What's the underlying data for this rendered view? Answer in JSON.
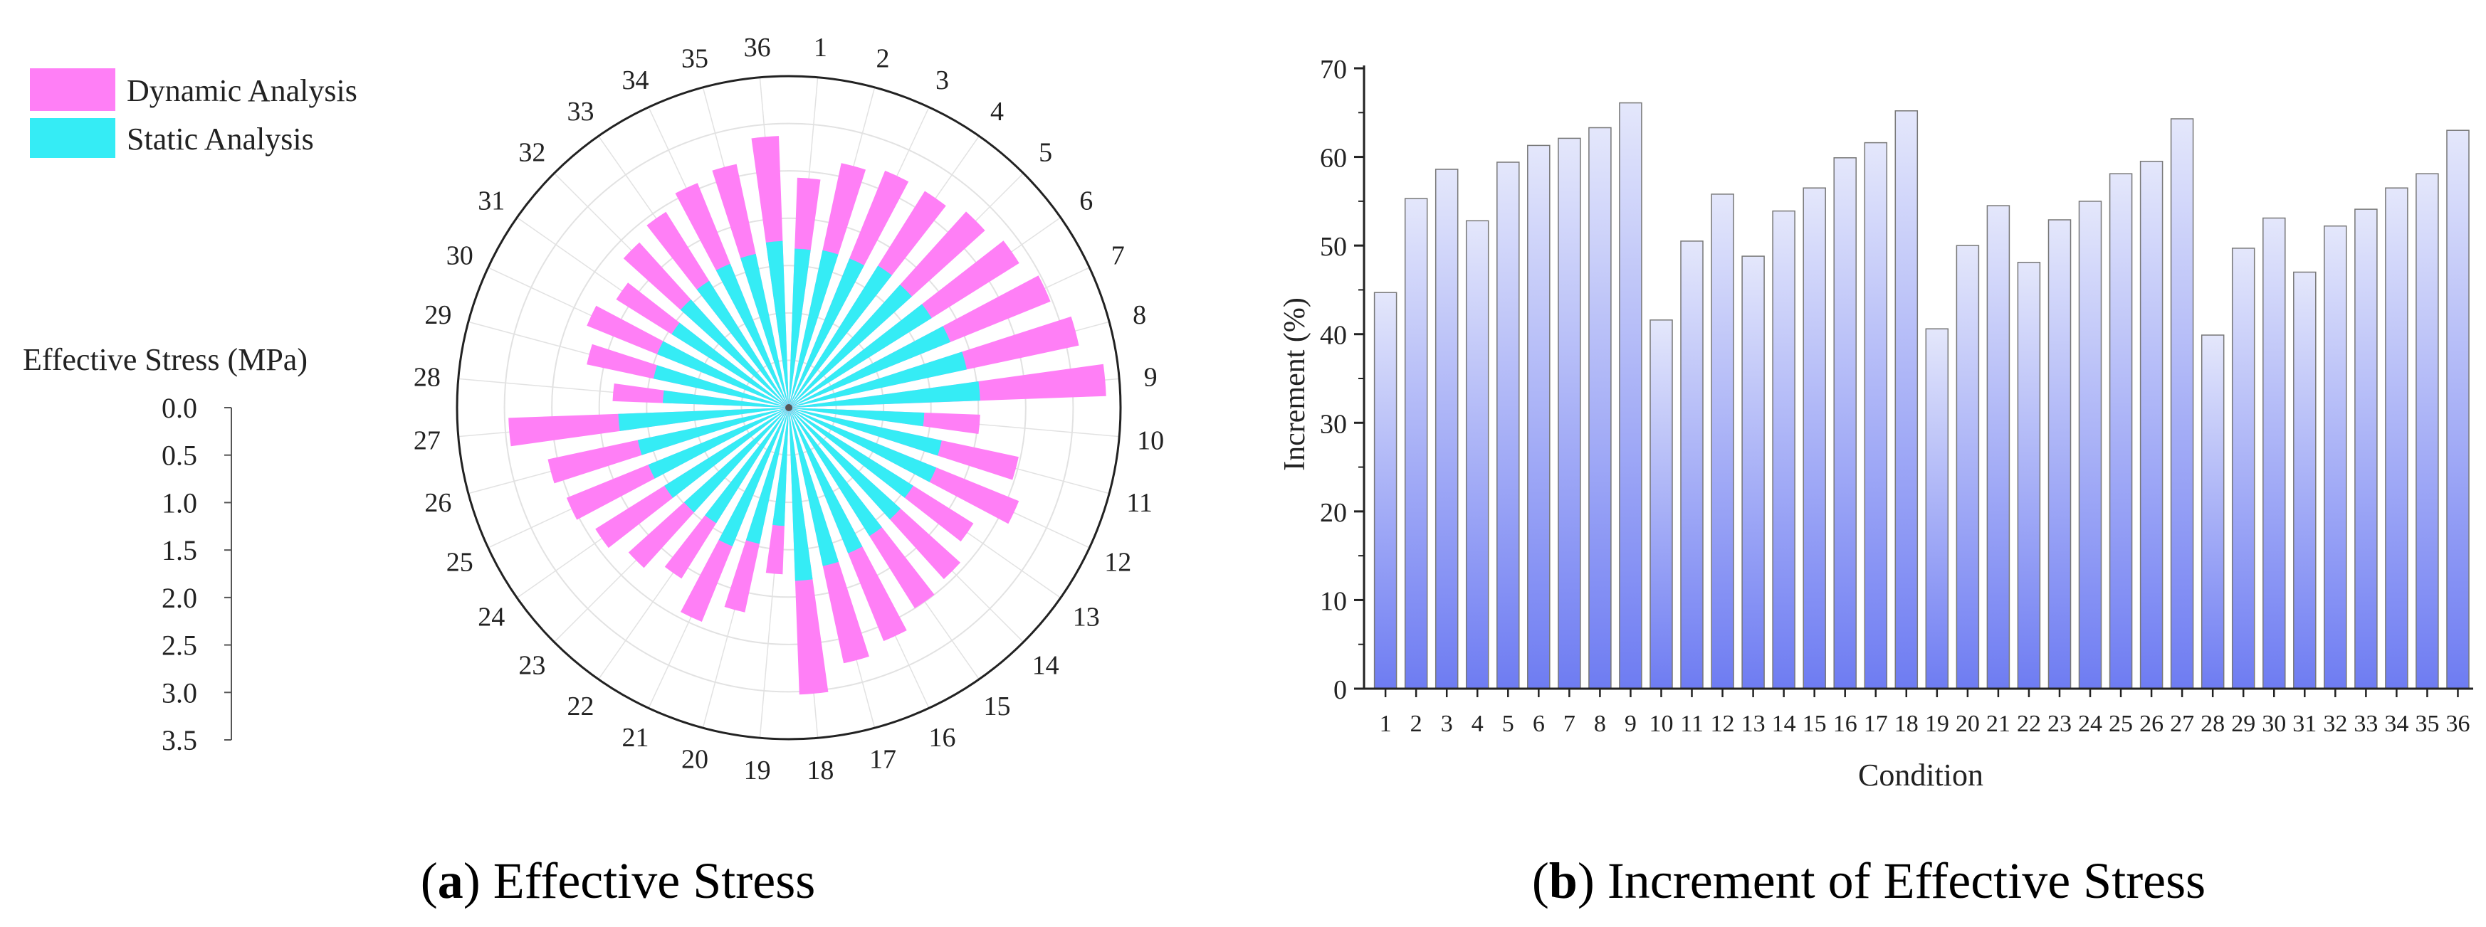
{
  "colors": {
    "dynamic": "#ff7ff6",
    "static": "#35ecf5",
    "bar_top": "#e4e7fb",
    "bar_bottom": "#6e7cf2",
    "axis": "#222222",
    "grid": "#e2e2e2"
  },
  "caption_a": {
    "letter": "a",
    "text": "Effective Stress"
  },
  "caption_b": {
    "letter": "b",
    "text": "Increment of Effective Stress"
  },
  "chart_data": [
    {
      "type": "bar",
      "polar": true,
      "title": "Effective Stress",
      "legend": [
        "Dynamic Analysis",
        "Static Analysis"
      ],
      "legend_position": "top-left",
      "radial_axis_title": "Effective Stress (MPa)",
      "radial_range": [
        0,
        3.5
      ],
      "radial_ticks": [
        "0.0",
        "0.5",
        "1.0",
        "1.5",
        "2.0",
        "2.5",
        "3.0",
        "3.5"
      ],
      "categories": [
        "1",
        "2",
        "3",
        "4",
        "5",
        "6",
        "7",
        "8",
        "9",
        "10",
        "11",
        "12",
        "13",
        "14",
        "15",
        "16",
        "17",
        "18",
        "19",
        "20",
        "21",
        "22",
        "23",
        "24",
        "25",
        "26",
        "27",
        "28",
        "29",
        "30",
        "31",
        "32",
        "33",
        "34",
        "35",
        "36"
      ],
      "series": [
        {
          "name": "Dynamic Analysis",
          "values": [
            2.43,
            2.64,
            2.7,
            2.7,
            2.79,
            2.87,
            2.98,
            3.13,
            3.35,
            2.02,
            2.48,
            2.62,
            2.3,
            2.44,
            2.5,
            2.66,
            2.76,
            3.03,
            1.76,
            2.21,
            2.44,
            2.13,
            2.28,
            2.41,
            2.53,
            2.6,
            2.96,
            1.86,
            2.18,
            2.3,
            2.15,
            2.35,
            2.44,
            2.56,
            2.63,
            2.87
          ]
        },
        {
          "name": "Static Analysis",
          "values": [
            1.68,
            1.7,
            1.7,
            1.77,
            1.75,
            1.78,
            1.84,
            1.92,
            2.02,
            1.43,
            1.65,
            1.68,
            1.55,
            1.59,
            1.6,
            1.66,
            1.71,
            1.83,
            1.25,
            1.47,
            1.58,
            1.44,
            1.49,
            1.55,
            1.6,
            1.63,
            1.8,
            1.33,
            1.46,
            1.5,
            1.46,
            1.54,
            1.58,
            1.64,
            1.66,
            1.76
          ]
        }
      ]
    },
    {
      "type": "bar",
      "title": "Increment of Effective Stress",
      "xlabel": "Condition",
      "ylabel": "Increment (%)",
      "ylim": [
        0,
        70
      ],
      "yticks": [
        "0",
        "10",
        "20",
        "30",
        "40",
        "50",
        "60",
        "70"
      ],
      "categories": [
        "1",
        "2",
        "3",
        "4",
        "5",
        "6",
        "7",
        "8",
        "9",
        "10",
        "11",
        "12",
        "13",
        "14",
        "15",
        "16",
        "17",
        "18",
        "19",
        "20",
        "21",
        "22",
        "23",
        "24",
        "25",
        "26",
        "27",
        "28",
        "29",
        "30",
        "31",
        "32",
        "33",
        "34",
        "35",
        "36"
      ],
      "values": [
        44.7,
        55.3,
        58.6,
        52.8,
        59.4,
        61.3,
        62.1,
        63.3,
        66.1,
        41.6,
        50.5,
        55.8,
        48.8,
        53.9,
        56.5,
        59.9,
        61.6,
        65.2,
        40.6,
        50.0,
        54.5,
        48.1,
        52.9,
        55.0,
        58.1,
        59.5,
        64.3,
        39.9,
        49.7,
        53.1,
        47.0,
        52.2,
        54.1,
        56.5,
        58.1,
        63.0
      ]
    }
  ]
}
